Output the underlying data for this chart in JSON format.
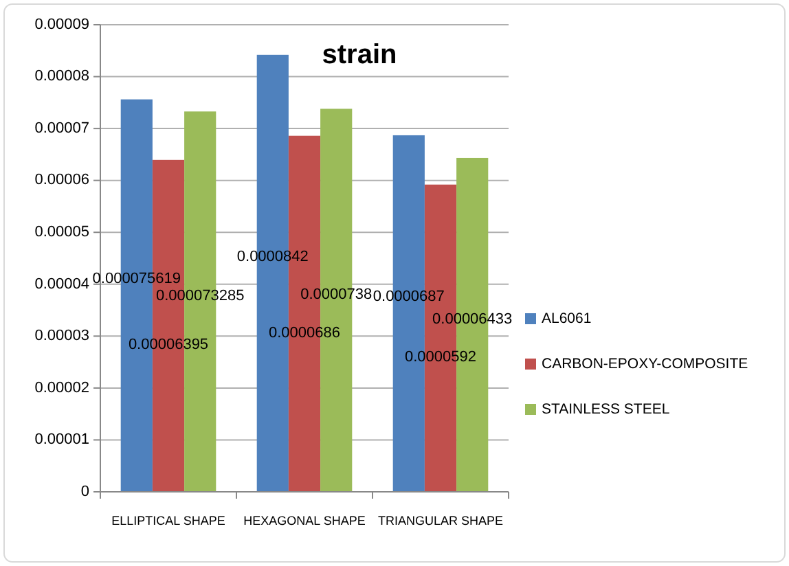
{
  "chart_data": {
    "type": "bar",
    "title": "strain",
    "categories": [
      "ELLIPTICAL SHAPE",
      "HEXAGONAL SHAPE",
      "TRIANGULAR SHAPE"
    ],
    "series": [
      {
        "name": "AL6061",
        "color": "#4f81bd",
        "values": [
          7.5619e-05,
          8.42e-05,
          6.87e-05
        ],
        "value_labels": [
          "0.000075619",
          "0.0000842",
          "0.0000687"
        ]
      },
      {
        "name": "CARBON-EPOXY-COMPOSITE",
        "color": "#c0504d",
        "values": [
          6.395e-05,
          6.86e-05,
          5.92e-05
        ],
        "value_labels": [
          "0.00006395",
          "0.0000686",
          "0.0000592"
        ]
      },
      {
        "name": "STAINLESS STEEL",
        "color": "#9bbb59",
        "values": [
          7.3285e-05,
          7.38e-05,
          6.433e-05
        ],
        "value_labels": [
          "0.000073285",
          "0.0000738",
          "0.00006433"
        ]
      }
    ],
    "ylim": [
      0,
      9e-05
    ],
    "yticks": [
      0,
      {
        "value": 1e-05,
        "label": "0.00001"
      },
      {
        "value": 2e-05,
        "label": "0.00002"
      },
      {
        "value": 3e-05,
        "label": "0.00003"
      },
      {
        "value": 4e-05,
        "label": "0.00004"
      },
      {
        "value": 5e-05,
        "label": "0.00005"
      },
      {
        "value": 6e-05,
        "label": "0.00006"
      },
      {
        "value": 7e-05,
        "label": "0.00007"
      },
      {
        "value": 8e-05,
        "label": "0.00008"
      },
      {
        "value": 9e-05,
        "label": "0.00009"
      }
    ],
    "grid": "y",
    "legend": "right"
  }
}
